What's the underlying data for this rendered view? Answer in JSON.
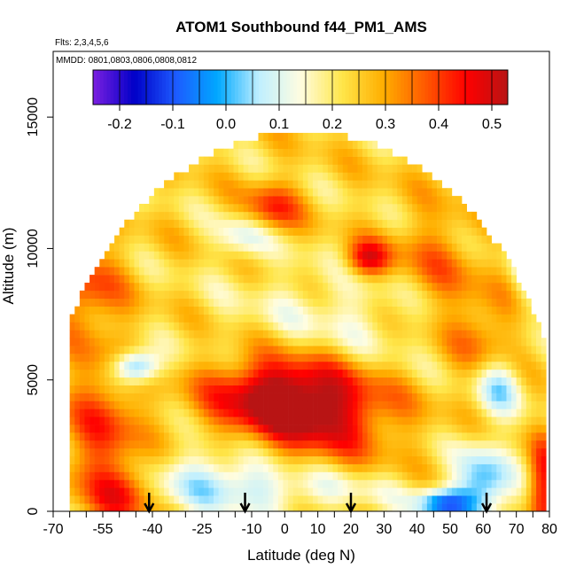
{
  "chart_data": {
    "type": "heatmap",
    "title": "ATOM1 Southbound f44_PM1_AMS",
    "subtitle_flights": "Flts: 2,3,4,5,6",
    "subtitle_dates": "MMDD: 0801,0803,0806,0808,0812",
    "xlabel": "Latitude (deg N)",
    "ylabel": "Altitude (m)",
    "xlim": [
      -70,
      80
    ],
    "ylim": [
      0,
      17500
    ],
    "x_ticks_major": [
      -70,
      -55,
      -40,
      -25,
      -10,
      0,
      10,
      20,
      30,
      40,
      50,
      60,
      70,
      80
    ],
    "x_tick_labels": [
      "-70",
      "-55",
      "-40",
      "-25",
      "-10",
      "0",
      "10",
      "20",
      "30",
      "40",
      "50",
      "60",
      "70",
      "80"
    ],
    "y_ticks": [
      0,
      5000,
      10000,
      15000
    ],
    "y_tick_labels": [
      "0",
      "5000",
      "10000",
      "15000"
    ],
    "colorbar": {
      "min": -0.25,
      "max": 0.53,
      "ticks": [
        -0.2,
        -0.1,
        0.0,
        0.1,
        0.2,
        0.3,
        0.4,
        0.5
      ],
      "tick_labels": [
        "-0.2",
        "-0.1",
        "0.0",
        "0.1",
        "0.2",
        "0.3",
        "0.4",
        "0.5"
      ],
      "colors": [
        "#7b1fe0",
        "#0000c8",
        "#1d5bff",
        "#00a8ff",
        "#bfefff",
        "#fffde0",
        "#ffe64a",
        "#ffae00",
        "#ff5a00",
        "#ff0000",
        "#b81414"
      ]
    },
    "profile_arrows_lat": [
      -41,
      -12,
      20,
      61
    ],
    "data_extent": {
      "lat_min": -65,
      "lat_max": 79,
      "alt_max": 13500
    },
    "field_features": [
      {
        "lat": 10,
        "alt": 3800,
        "value": 0.5,
        "lat_sigma": 16,
        "alt_sigma": 1300
      },
      {
        "lat": -5,
        "alt": 4500,
        "value": 0.45,
        "lat_sigma": 14,
        "alt_sigma": 1000
      },
      {
        "lat": -55,
        "alt": 3000,
        "value": 0.4,
        "lat_sigma": 8,
        "alt_sigma": 2200
      },
      {
        "lat": -60,
        "alt": 8500,
        "value": 0.38,
        "lat_sigma": 8,
        "alt_sigma": 1200
      },
      {
        "lat": -48,
        "alt": 700,
        "value": 0.4,
        "lat_sigma": 6,
        "alt_sigma": 800
      },
      {
        "lat": 25,
        "alt": 9600,
        "value": 0.48,
        "lat_sigma": 5,
        "alt_sigma": 500
      },
      {
        "lat": -4,
        "alt": 11500,
        "value": 0.42,
        "lat_sigma": 6,
        "alt_sigma": 700
      },
      {
        "lat": 45,
        "alt": 9200,
        "value": 0.36,
        "lat_sigma": 10,
        "alt_sigma": 1500
      },
      {
        "lat": 60,
        "alt": 6800,
        "value": 0.36,
        "lat_sigma": 8,
        "alt_sigma": 1200
      },
      {
        "lat": 78,
        "alt": 1000,
        "value": 0.45,
        "lat_sigma": 3,
        "alt_sigma": 1200
      },
      {
        "lat": -45,
        "alt": 5500,
        "value": -0.05,
        "lat_sigma": 5,
        "alt_sigma": 450
      },
      {
        "lat": 60,
        "alt": 1000,
        "value": 0.0,
        "lat_sigma": 6,
        "alt_sigma": 1100
      },
      {
        "lat": 48,
        "alt": 300,
        "value": -0.05,
        "lat_sigma": 6,
        "alt_sigma": 400
      },
      {
        "lat": -20,
        "alt": 1200,
        "value": 0.08,
        "lat_sigma": 16,
        "alt_sigma": 900
      },
      {
        "lat": 10,
        "alt": 800,
        "value": 0.15,
        "lat_sigma": 20,
        "alt_sigma": 600
      },
      {
        "lat": 65,
        "alt": 4800,
        "value": 0.06,
        "lat_sigma": 5,
        "alt_sigma": 800
      },
      {
        "lat": 75,
        "alt": 9500,
        "value": 0.04,
        "lat_sigma": 4,
        "alt_sigma": 1200
      },
      {
        "lat": -12,
        "alt": 10500,
        "value": 0.1,
        "lat_sigma": 6,
        "alt_sigma": 600
      },
      {
        "lat": 20,
        "alt": 7500,
        "value": 0.15,
        "lat_sigma": 25,
        "alt_sigma": 1500
      }
    ],
    "background_value": 0.24
  }
}
